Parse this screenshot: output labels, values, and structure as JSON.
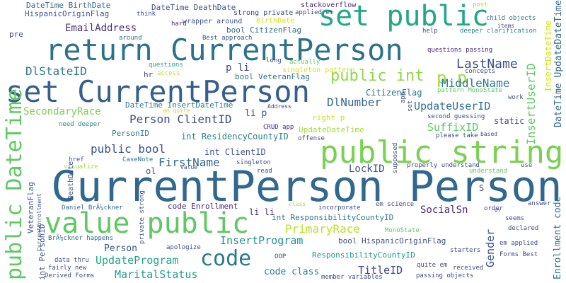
{
  "words": [
    {
      "text": "CurrentPerson Person",
      "color": "#31688e"
    },
    {
      "text": "return CurrentPerson",
      "color": "#2c728e"
    },
    {
      "text": "set CurrentPerson",
      "color": "#355f8d"
    },
    {
      "text": "public string",
      "color": "#7ad151"
    },
    {
      "text": "set public",
      "color": "#22a884"
    },
    {
      "text": "value public",
      "color": "#5ec962"
    },
    {
      "text": "code",
      "color": "#2a788e"
    },
    {
      "text": "public DateTime",
      "color": "#5ec962"
    },
    {
      "text": "public int",
      "color": "#90d743"
    },
    {
      "text": "p p",
      "color": "#a5db36"
    },
    {
      "text": "LastName",
      "color": "#3b528b"
    },
    {
      "text": "MiddleName",
      "color": "#2a788e"
    },
    {
      "text": "DlStateID",
      "color": "#2a788e"
    },
    {
      "text": "DlNumber",
      "color": "#31688e"
    },
    {
      "text": "SecondaryRace",
      "color": "#7ad151"
    },
    {
      "text": "Person ClientID",
      "color": "#3e4a89"
    },
    {
      "text": "UpdateUserID",
      "color": "#2c728e"
    },
    {
      "text": "SuffixID",
      "color": "#5ec962"
    },
    {
      "text": "public bool",
      "color": "#3b528b"
    },
    {
      "text": "FirstName",
      "color": "#31688e"
    },
    {
      "text": "LockID",
      "color": "#3b528b"
    },
    {
      "text": "SocialSn",
      "color": "#482878"
    },
    {
      "text": "PrimaryRace",
      "color": "#bddf26"
    },
    {
      "text": "InsertProgram",
      "color": "#21918c"
    },
    {
      "text": "UpdateProgram",
      "color": "#21a585"
    },
    {
      "text": "MaritalStatus",
      "color": "#1f9e89"
    },
    {
      "text": "TitleID",
      "color": "#3e4a89"
    },
    {
      "text": "EmailAddress",
      "color": "#472d7b"
    },
    {
      "text": "Gender",
      "color": "#3b528b"
    },
    {
      "text": "Person",
      "color": "#3b528b"
    },
    {
      "text": "code class",
      "color": "#26828e"
    },
    {
      "text": "p li",
      "color": "#3e4a89"
    },
    {
      "text": "li p",
      "color": "#3b528b"
    },
    {
      "text": "li li",
      "color": "#472d7b"
    },
    {
      "text": "CitizenFlag",
      "color": "#2c728e"
    },
    {
      "text": "int ResidencyCountyID",
      "color": "#26828e"
    },
    {
      "text": "int ClientID",
      "color": "#3b528b"
    },
    {
      "text": "int ResponsibilityCountyID",
      "color": "#2a788e"
    },
    {
      "text": "ResponsibilityCountyID",
      "color": "#1f9e89"
    },
    {
      "text": "bool HispanicOriginFlag",
      "color": "#3b528b"
    },
    {
      "text": "code Enrollment",
      "color": "#482878"
    },
    {
      "text": "UpdateDateTime",
      "color": "#a0da39"
    },
    {
      "text": "DateTime InsertDateTime",
      "color": "#2a788e"
    },
    {
      "text": "PersonID",
      "color": "#2a788e"
    },
    {
      "text": "bool CitizenFlag",
      "color": "#31688e"
    },
    {
      "text": "bool VeteranFlag",
      "color": "#2c728e"
    },
    {
      "text": "static",
      "color": "#3b528b"
    },
    {
      "text": "right p",
      "color": "#cae11f"
    },
    {
      "text": "DateTime BirthDate",
      "color": "#31688e"
    },
    {
      "text": "HispanicOriginFlag",
      "color": "#3b528b"
    },
    {
      "text": "DateTime DeathDate",
      "color": "#3b528b"
    },
    {
      "text": "strong private",
      "color": "#3e4a89"
    },
    {
      "text": "BirthDate",
      "color": "#d2e21b"
    },
    {
      "text": "wrapper around",
      "color": "#3b528b"
    },
    {
      "text": "stackoverflow",
      "color": "#482878"
    },
    {
      "text": "applied em",
      "color": "#3e4a89"
    },
    {
      "text": "post",
      "color": "#aadc32"
    },
    {
      "text": "think",
      "color": "#3e4a89"
    },
    {
      "text": "hard",
      "color": "#482878"
    },
    {
      "text": "pre",
      "color": "#3e4a89"
    },
    {
      "text": "around",
      "color": "#2c728e"
    },
    {
      "text": "Best approach",
      "color": "#3b528b"
    },
    {
      "text": "help",
      "color": "#3e4a89"
    },
    {
      "text": "deeper clarification",
      "color": "#26828e"
    },
    {
      "text": "child objects",
      "color": "#2c728e"
    },
    {
      "text": "items",
      "color": "#3e4a89"
    },
    {
      "text": "questions passing",
      "color": "#482878"
    },
    {
      "text": "questions",
      "color": "#1fa088"
    },
    {
      "text": "hr",
      "color": "#3e4a89"
    },
    {
      "text": "access",
      "color": "#cae11f"
    },
    {
      "text": "long",
      "color": "#3e4a89"
    },
    {
      "text": "actually",
      "color": "#5ec962"
    },
    {
      "text": "singleton pattern",
      "color": "#d8e219"
    },
    {
      "text": "concepts",
      "color": "#3b528b"
    },
    {
      "text": "pattern MonoState",
      "color": "#5ec962"
    },
    {
      "text": "work",
      "color": "#3e4a89"
    },
    {
      "text": "em quite",
      "color": "#bddf26"
    },
    {
      "text": "Address",
      "color": "#3e4a89"
    },
    {
      "text": "second guessing",
      "color": "#3e4a89"
    },
    {
      "text": "please take",
      "color": "#3e4a89"
    },
    {
      "text": "based",
      "color": "#3e4a89"
    },
    {
      "text": "need deeper",
      "color": "#26828e"
    },
    {
      "text": "CRUD app",
      "color": "#482878"
    },
    {
      "text": "offense",
      "color": "#3e4a89"
    },
    {
      "text": "href",
      "color": "#3b528b"
    },
    {
      "text": "visualize",
      "color": "#a0da39"
    },
    {
      "text": "CaseNote",
      "color": "#2c728e"
    },
    {
      "text": "value",
      "color": "#3b528b"
    },
    {
      "text": "singleton",
      "color": "#3e4a89"
    },
    {
      "text": "read",
      "color": "#3e4a89"
    },
    {
      "text": "properly understand",
      "color": "#3e4a89"
    },
    {
      "text": "understand",
      "color": "#5ec962"
    },
    {
      "text": "use",
      "color": "#3e4a89"
    },
    {
      "text": "ol",
      "color": "#3e4a89"
    },
    {
      "text": "answer",
      "color": "#3e4a89"
    },
    {
      "text": "Daniel BrÃ¼ckner",
      "color": "#31688e"
    },
    {
      "text": "class",
      "color": "#a5db36"
    },
    {
      "text": "incorporate",
      "color": "#3e4a89"
    },
    {
      "text": "em science",
      "color": "#3e4a89"
    },
    {
      "text": "order",
      "color": "#3e4a89"
    },
    {
      "text": "seems",
      "color": "#3e4a89"
    },
    {
      "text": "declared",
      "color": "#3e4a89"
    },
    {
      "text": "MonoState",
      "color": "#5ec962"
    },
    {
      "text": "BrÃ¼ckner happens",
      "color": "#31688e"
    },
    {
      "text": "apologize",
      "color": "#3e4a89"
    },
    {
      "text": "em applied",
      "color": "#3e4a89"
    },
    {
      "text": "Forms Best",
      "color": "#3e4a89"
    },
    {
      "text": "starters",
      "color": "#3e4a89"
    },
    {
      "text": "OOP",
      "color": "#3e4a89"
    },
    {
      "text": "quite em",
      "color": "#3e4a89"
    },
    {
      "text": "received",
      "color": "#3e4a89"
    },
    {
      "text": "passing objects",
      "color": "#3e4a89"
    },
    {
      "text": "data thru",
      "color": "#3e4a89"
    },
    {
      "text": "fairly new",
      "color": "#3e4a89"
    },
    {
      "text": "Derived Forms",
      "color": "#3e4a89"
    },
    {
      "text": "member variables",
      "color": "#3e4a89"
    },
    {
      "text": "InsertUserID",
      "color": "#5ec962"
    },
    {
      "text": "InsertDateTime",
      "color": "#d2e21b"
    },
    {
      "text": "DateTime UpdateDateTime",
      "color": "#31688e"
    },
    {
      "text": "Enrollment code",
      "color": "#2c728e"
    },
    {
      "text": "VeteranFlag",
      "color": "#3b528b"
    },
    {
      "text": "DeathDate",
      "color": "#3b528b"
    },
    {
      "text": "CurrentEnrollment",
      "color": "#3b528b"
    },
    {
      "text": "int PersonID",
      "color": "#3b528b"
    },
    {
      "text": "private strong",
      "color": "#3e4a89"
    },
    {
      "text": "supposed",
      "color": "#3e4a89"
    },
    {
      "text": "app",
      "color": "#3e4a89"
    },
    {
      "text": "set",
      "color": "#3e4a89"
    },
    {
      "text": "S",
      "color": "#3e4a89"
    },
    {
      "text": "p",
      "color": "#3e4a89"
    }
  ]
}
